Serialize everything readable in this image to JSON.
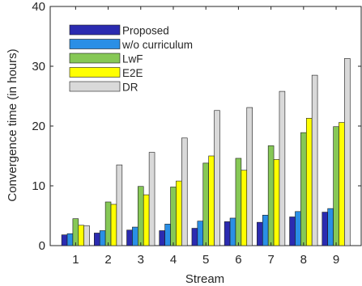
{
  "chart_data": {
    "type": "bar",
    "title": "",
    "xlabel": "Stream",
    "ylabel": "Convergence time (in hours)",
    "categories": [
      "1",
      "2",
      "3",
      "4",
      "5",
      "6",
      "7",
      "8",
      "9"
    ],
    "ylim": [
      0,
      40
    ],
    "yticks": [
      "0",
      "10",
      "20",
      "30",
      "40"
    ],
    "grid": false,
    "legend_position": "top-left",
    "series": [
      {
        "name": "Proposed",
        "color": "#2b2bb0",
        "values": [
          1.8,
          2.1,
          2.6,
          2.5,
          2.9,
          4.0,
          3.9,
          4.8,
          5.6
        ]
      },
      {
        "name": "w/o curriculum",
        "color": "#2a8fe6",
        "values": [
          2.0,
          2.5,
          3.1,
          3.6,
          4.1,
          4.6,
          5.1,
          5.7,
          6.2
        ]
      },
      {
        "name": "LwF",
        "color": "#86c856",
        "values": [
          4.5,
          7.3,
          9.9,
          9.8,
          13.8,
          14.6,
          16.7,
          18.9,
          19.9
        ]
      },
      {
        "name": "E2E",
        "color": "#ffff00",
        "values": [
          3.4,
          6.9,
          8.5,
          10.8,
          15.0,
          12.6,
          14.4,
          21.3,
          20.6
        ]
      },
      {
        "name": "DR",
        "color": "#d9d9d9",
        "values": [
          3.3,
          13.5,
          15.6,
          18.0,
          22.6,
          23.1,
          25.8,
          28.5,
          31.3
        ]
      }
    ]
  }
}
